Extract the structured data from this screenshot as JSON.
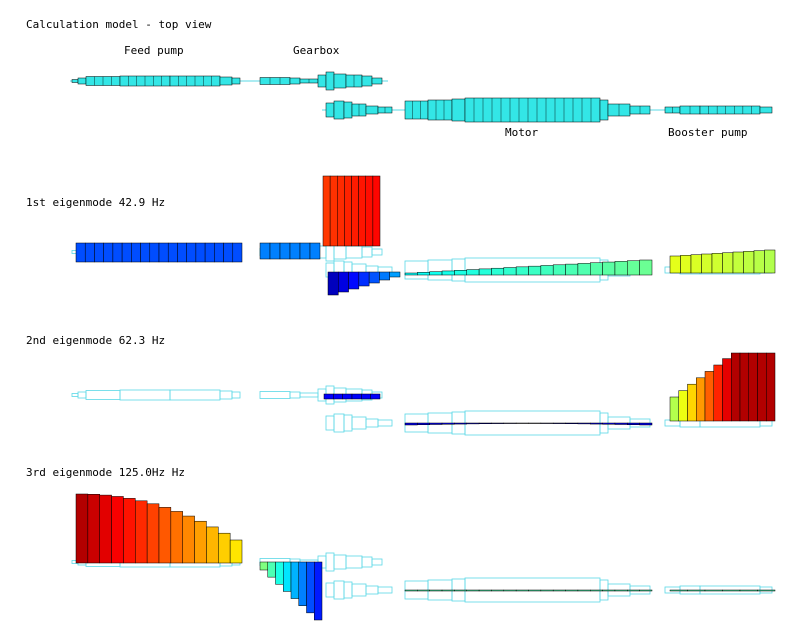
{
  "title": "Calculation model - top view",
  "labels": {
    "feed_pump": "Feed pump",
    "gearbox": "Gearbox",
    "motor": "Motor",
    "booster_pump": "Booster pump"
  },
  "modes": [
    {
      "label": "1st eigenmode 42.9 Hz"
    },
    {
      "label": "2nd eigenmode 62.3 Hz"
    },
    {
      "label": "3rd eigenmode 125.0Hz Hz"
    }
  ],
  "colors": {
    "shaft_fill": "#33e6e6",
    "shaft_outline": "#5ad8e6",
    "edge": "#000000",
    "background": "#ffffff"
  }
}
